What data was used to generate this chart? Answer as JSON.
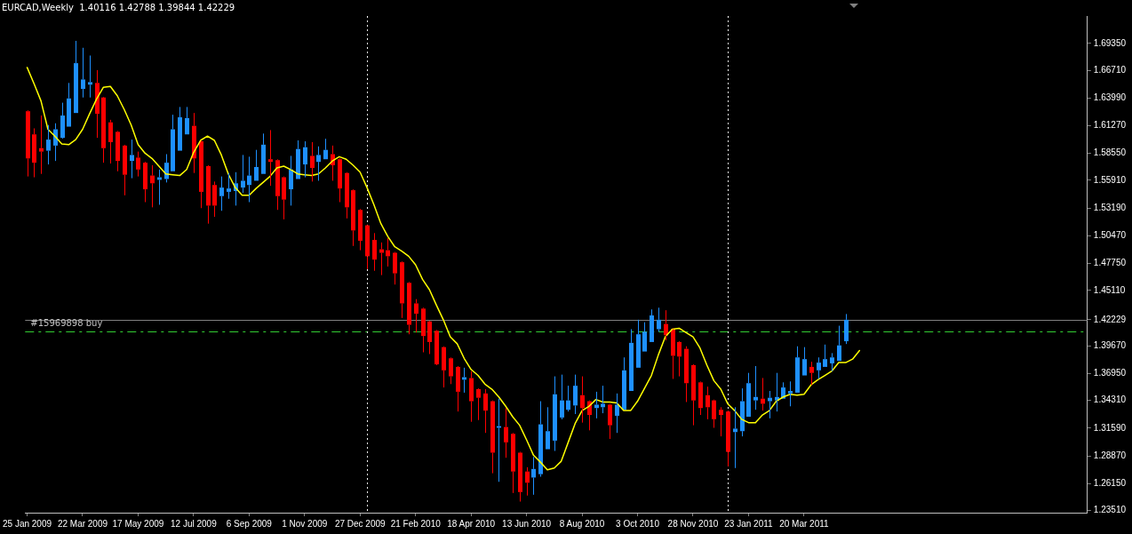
{
  "chart_data": {
    "type": "candlestick",
    "title": "EURCAD,Weekly  1.40116 1.42788 1.39844 1.42229",
    "x": [
      "2009-01-25",
      "2009-02-01",
      "2009-02-08",
      "2009-02-15",
      "2009-02-22",
      "2009-03-01",
      "2009-03-08",
      "2009-03-15",
      "2009-03-22",
      "2009-03-29",
      "2009-04-05",
      "2009-04-12",
      "2009-04-19",
      "2009-04-26",
      "2009-05-03",
      "2009-05-10",
      "2009-05-17",
      "2009-05-24",
      "2009-05-31",
      "2009-06-07",
      "2009-06-14",
      "2009-06-21",
      "2009-06-28",
      "2009-07-05",
      "2009-07-12",
      "2009-07-19",
      "2009-07-26",
      "2009-08-02",
      "2009-08-09",
      "2009-08-16",
      "2009-08-23",
      "2009-08-30",
      "2009-09-06",
      "2009-09-13",
      "2009-09-20",
      "2009-09-27",
      "2009-10-04",
      "2009-10-11",
      "2009-10-18",
      "2009-10-25",
      "2009-11-01",
      "2009-11-08",
      "2009-11-15",
      "2009-11-22",
      "2009-11-29",
      "2009-12-06",
      "2009-12-13",
      "2009-12-20",
      "2009-12-27",
      "2010-01-03",
      "2010-01-10",
      "2010-01-17",
      "2010-01-24",
      "2010-01-31",
      "2010-02-07",
      "2010-02-14",
      "2010-02-21",
      "2010-02-28",
      "2010-03-07",
      "2010-03-14",
      "2010-03-21",
      "2010-03-28",
      "2010-04-04",
      "2010-04-11",
      "2010-04-18",
      "2010-04-25",
      "2010-05-02",
      "2010-05-09",
      "2010-05-16",
      "2010-05-23",
      "2010-05-30",
      "2010-06-06",
      "2010-06-13",
      "2010-06-20",
      "2010-06-27",
      "2010-07-04",
      "2010-07-11",
      "2010-07-18",
      "2010-07-25",
      "2010-08-01",
      "2010-08-08",
      "2010-08-15",
      "2010-08-22",
      "2010-08-29",
      "2010-09-05",
      "2010-09-12",
      "2010-09-19",
      "2010-09-26",
      "2010-10-03",
      "2010-10-10",
      "2010-10-17",
      "2010-10-24",
      "2010-10-31",
      "2010-11-07",
      "2010-11-14",
      "2010-11-21",
      "2010-11-28",
      "2010-12-05",
      "2010-12-12",
      "2010-12-19",
      "2010-12-26",
      "2011-01-02",
      "2011-01-09",
      "2011-01-16",
      "2011-01-23",
      "2011-01-30",
      "2011-02-06",
      "2011-02-13",
      "2011-02-20",
      "2011-02-27",
      "2011-03-06",
      "2011-03-13",
      "2011-03-20",
      "2011-03-27",
      "2011-04-03",
      "2011-04-10",
      "2011-04-17",
      "2011-04-24",
      "2011-05-01"
    ],
    "ohlc": [
      [
        1.6269,
        1.6278,
        1.5629,
        1.5806
      ],
      [
        1.6042,
        1.6101,
        1.5621,
        1.5764
      ],
      [
        1.5907,
        1.6227,
        1.5654,
        1.5873
      ],
      [
        1.5882,
        1.6134,
        1.5747,
        1.5991
      ],
      [
        1.5932,
        1.6151,
        1.5781,
        1.6092
      ],
      [
        1.6008,
        1.6353,
        1.5999,
        1.6227
      ],
      [
        1.6118,
        1.6547,
        1.6118,
        1.6395
      ],
      [
        1.6252,
        1.696,
        1.6252,
        1.6741
      ],
      [
        1.6488,
        1.6892,
        1.6404,
        1.6581
      ],
      [
        1.653,
        1.6816,
        1.6404,
        1.6555
      ],
      [
        1.6547,
        1.6673,
        1.6008,
        1.6244
      ],
      [
        1.6404,
        1.641,
        1.5764,
        1.5907
      ],
      [
        1.616,
        1.6185,
        1.5756,
        1.5966
      ],
      [
        1.6067,
        1.6075,
        1.568,
        1.5781
      ],
      [
        1.5932,
        1.594,
        1.5444,
        1.5646
      ],
      [
        1.5781,
        1.5991,
        1.5612,
        1.584
      ],
      [
        1.5814,
        1.5873,
        1.5629,
        1.5697
      ],
      [
        1.5764,
        1.5772,
        1.5377,
        1.5503
      ],
      [
        1.5638,
        1.5739,
        1.5326,
        1.5562
      ],
      [
        1.5596,
        1.5697,
        1.5351,
        1.5621
      ],
      [
        1.5604,
        1.5848,
        1.557,
        1.5764
      ],
      [
        1.568,
        1.6235,
        1.568,
        1.6092
      ],
      [
        1.5882,
        1.6311,
        1.5882,
        1.621
      ],
      [
        1.6042,
        1.6311,
        1.6042,
        1.6202
      ],
      [
        1.6126,
        1.6252,
        1.5663,
        1.5806
      ],
      [
        1.5974,
        1.5982,
        1.5318,
        1.5478
      ],
      [
        1.573,
        1.5738,
        1.5166,
        1.5343
      ],
      [
        1.5545,
        1.5579,
        1.5233,
        1.5343
      ],
      [
        1.5436,
        1.5629,
        1.5292,
        1.552
      ],
      [
        1.5478,
        1.5663,
        1.541,
        1.5511
      ],
      [
        1.5486,
        1.5671,
        1.5343,
        1.5562
      ],
      [
        1.552,
        1.584,
        1.5469,
        1.5587
      ],
      [
        1.5545,
        1.5823,
        1.5377,
        1.5638
      ],
      [
        1.5587,
        1.589,
        1.5587,
        1.5722
      ],
      [
        1.5654,
        1.605,
        1.5654,
        1.5941
      ],
      [
        1.5798,
        1.6084,
        1.5537,
        1.5772
      ],
      [
        1.5789,
        1.5797,
        1.5301,
        1.5436
      ],
      [
        1.5621,
        1.5629,
        1.5208,
        1.5402
      ],
      [
        1.5503,
        1.5831,
        1.5343,
        1.5697
      ],
      [
        1.5604,
        1.5983,
        1.5604,
        1.5899
      ],
      [
        1.5747,
        1.5974,
        1.5621,
        1.5916
      ],
      [
        1.5831,
        1.5966,
        1.5579,
        1.5713
      ],
      [
        1.5772,
        1.5924,
        1.5587,
        1.584
      ],
      [
        1.5798,
        1.5999,
        1.5798,
        1.589
      ],
      [
        1.5848,
        1.5932,
        1.5587,
        1.5739
      ],
      [
        1.5798,
        1.5806,
        1.5377,
        1.5511
      ],
      [
        1.5663,
        1.5671,
        1.5217,
        1.5326
      ],
      [
        1.5494,
        1.5502,
        1.4947,
        1.5099
      ],
      [
        1.5301,
        1.5309,
        1.4905,
        1.4998
      ],
      [
        1.5149,
        1.5157,
        1.472,
        1.4846
      ],
      [
        1.5006,
        1.5073,
        1.4703,
        1.4813
      ],
      [
        1.4914,
        1.4981,
        1.4661,
        1.488
      ],
      [
        1.4905,
        1.5023,
        1.4745,
        1.4846
      ],
      [
        1.488,
        1.4888,
        1.4568,
        1.4678
      ],
      [
        1.4787,
        1.4795,
        1.424,
        1.4383
      ],
      [
        1.4585,
        1.4593,
        1.408,
        1.4173
      ],
      [
        1.4383,
        1.4425,
        1.4097,
        1.4282
      ],
      [
        1.4332,
        1.4341,
        1.3903,
        1.4063
      ],
      [
        1.4206,
        1.4214,
        1.3886,
        1.4004
      ],
      [
        1.4114,
        1.4122,
        1.3777,
        1.3785
      ],
      [
        1.3954,
        1.3962,
        1.3558,
        1.3726
      ],
      [
        1.3844,
        1.3852,
        1.3591,
        1.3667
      ],
      [
        1.376,
        1.3768,
        1.3322,
        1.3516
      ],
      [
        1.3634,
        1.3752,
        1.3507,
        1.3659
      ],
      [
        1.365,
        1.3718,
        1.3221,
        1.3423
      ],
      [
        1.3541,
        1.3549,
        1.3238,
        1.3457
      ],
      [
        1.3499,
        1.3541,
        1.3112,
        1.3331
      ],
      [
        1.3423,
        1.3431,
        1.2716,
        1.2918
      ],
      [
        1.3162,
        1.3448,
        1.2632,
        1.3179
      ],
      [
        1.317,
        1.3356,
        1.2868,
        1.3019
      ],
      [
        1.3103,
        1.3111,
        1.2522,
        1.2733
      ],
      [
        1.2918,
        1.2926,
        1.2438,
        1.2531
      ],
      [
        1.2733,
        1.2775,
        1.2497,
        1.2623
      ],
      [
        1.2674,
        1.2876,
        1.2505,
        1.2758
      ],
      [
        1.2707,
        1.3423,
        1.2682,
        1.3196
      ],
      [
        1.2952,
        1.3364,
        1.2952,
        1.3129
      ],
      [
        1.3036,
        1.3667,
        1.2935,
        1.3491
      ],
      [
        1.3263,
        1.3684,
        1.3246,
        1.3431
      ],
      [
        1.3339,
        1.3575,
        1.3322,
        1.3431
      ],
      [
        1.3381,
        1.3684,
        1.3297,
        1.3575
      ],
      [
        1.3482,
        1.3667,
        1.3213,
        1.3356
      ],
      [
        1.3423,
        1.3431,
        1.3137,
        1.3288
      ],
      [
        1.3356,
        1.3516,
        1.3255,
        1.3389
      ],
      [
        1.3364,
        1.3575,
        1.3305,
        1.3398
      ],
      [
        1.3389,
        1.3397,
        1.3053,
        1.3187
      ],
      [
        1.328,
        1.3499,
        1.3112,
        1.3389
      ],
      [
        1.3339,
        1.3853,
        1.3339,
        1.3726
      ],
      [
        1.3524,
        1.413,
        1.3524,
        1.3996
      ],
      [
        1.3752,
        1.4223,
        1.3752,
        1.408
      ],
      [
        1.3911,
        1.4198,
        1.3911,
        1.4105
      ],
      [
        1.4004,
        1.4324,
        1.4004,
        1.4265
      ],
      [
        1.413,
        1.4341,
        1.4105,
        1.4223
      ],
      [
        1.4181,
        1.4316,
        1.4021,
        1.4071
      ],
      [
        1.413,
        1.4138,
        1.3642,
        1.3869
      ],
      [
        1.4004,
        1.4012,
        1.3667,
        1.3861
      ],
      [
        1.3937,
        1.3962,
        1.3415,
        1.36
      ],
      [
        1.3777,
        1.3785,
        1.3187,
        1.3431
      ],
      [
        1.3608,
        1.3616,
        1.3288,
        1.3356
      ],
      [
        1.3482,
        1.3566,
        1.3246,
        1.3364
      ],
      [
        1.3431,
        1.3439,
        1.3162,
        1.3246
      ],
      [
        1.3339,
        1.3364,
        1.3078,
        1.3288
      ],
      [
        1.3322,
        1.333,
        1.2783,
        1.2926
      ],
      [
        1.312,
        1.3364,
        1.2767,
        1.3154
      ],
      [
        1.3129,
        1.3549,
        1.3078,
        1.3423
      ],
      [
        1.3271,
        1.3701,
        1.3271,
        1.36
      ],
      [
        1.3431,
        1.3768,
        1.3339,
        1.3465
      ],
      [
        1.3448,
        1.3651,
        1.3331,
        1.3398
      ],
      [
        1.3423,
        1.3524,
        1.3255,
        1.3457
      ],
      [
        1.3431,
        1.3701,
        1.3322,
        1.3465
      ],
      [
        1.3448,
        1.3608,
        1.3448,
        1.3558
      ],
      [
        1.3499,
        1.3617,
        1.3373,
        1.3524
      ],
      [
        1.3507,
        1.3962,
        1.3507,
        1.3853
      ],
      [
        1.3676,
        1.3954,
        1.3676,
        1.3836
      ],
      [
        1.376,
        1.381,
        1.3583,
        1.3701
      ],
      [
        1.3726,
        1.3853,
        1.3642,
        1.3802
      ],
      [
        1.376,
        1.3979,
        1.376,
        1.3836
      ],
      [
        1.3794,
        1.3895,
        1.3718,
        1.3853
      ],
      [
        1.3819,
        1.4164,
        1.3819,
        1.3971
      ],
      [
        1.40116,
        1.42788,
        1.39844,
        1.42229
      ]
    ],
    "colors": [
      "#ff0000",
      "#ff0000",
      "#ff0000",
      "#1e90ff",
      "#1e90ff",
      "#1e90ff",
      "#1e90ff",
      "#1e90ff",
      "#1e90ff",
      "#1e90ff",
      "#ff0000",
      "#ff0000",
      "#ff0000",
      "#ff0000",
      "#ff0000",
      "#1e90ff",
      "#ff0000",
      "#ff0000",
      "#ff0000",
      "#1e90ff",
      "#1e90ff",
      "#1e90ff",
      "#1e90ff",
      "#1e90ff",
      "#ff0000",
      "#ff0000",
      "#ff0000",
      "#ff0000",
      "#1e90ff",
      "#1e90ff",
      "#1e90ff",
      "#1e90ff",
      "#1e90ff",
      "#1e90ff",
      "#1e90ff",
      "#ff0000",
      "#ff0000",
      "#ff0000",
      "#1e90ff",
      "#1e90ff",
      "#1e90ff",
      "#ff0000",
      "#1e90ff",
      "#1e90ff",
      "#ff0000",
      "#ff0000",
      "#ff0000",
      "#ff0000",
      "#ff0000",
      "#ff0000",
      "#ff0000",
      "#ff0000",
      "#ff0000",
      "#ff0000",
      "#ff0000",
      "#ff0000",
      "#ff0000",
      "#ff0000",
      "#ff0000",
      "#ff0000",
      "#ff0000",
      "#ff0000",
      "#ff0000",
      "#1e90ff",
      "#ff0000",
      "#ff0000",
      "#ff0000",
      "#ff0000",
      "#1e90ff",
      "#ff0000",
      "#ff0000",
      "#ff0000",
      "#ff0000",
      "#1e90ff",
      "#1e90ff",
      "#1e90ff",
      "#1e90ff",
      "#1e90ff",
      "#1e90ff",
      "#1e90ff",
      "#ff0000",
      "#ff0000",
      "#1e90ff",
      "#1e90ff",
      "#ff0000",
      "#1e90ff",
      "#1e90ff",
      "#1e90ff",
      "#1e90ff",
      "#1e90ff",
      "#1e90ff",
      "#1e90ff",
      "#ff0000",
      "#ff0000",
      "#ff0000",
      "#ff0000",
      "#ff0000",
      "#ff0000",
      "#ff0000",
      "#ff0000",
      "#ff0000",
      "#ff0000",
      "#1e90ff",
      "#1e90ff",
      "#1e90ff",
      "#1e90ff",
      "#ff0000",
      "#1e90ff",
      "#1e90ff",
      "#1e90ff",
      "#1e90ff",
      "#1e90ff",
      "#1e90ff",
      "#ff0000",
      "#1e90ff",
      "#1e90ff",
      "#1e90ff",
      "#1e90ff",
      "#1e90ff"
    ],
    "series": [
      {
        "type": "line",
        "color": "#ffff00",
        "x": [
          "2009-01-25",
          "2009-02-01",
          "2009-02-08",
          "2009-02-15",
          "2009-02-22",
          "2009-03-01",
          "2009-03-08",
          "2009-03-15",
          "2009-03-22",
          "2009-03-29",
          "2009-04-05",
          "2009-04-12",
          "2009-04-19",
          "2009-04-26",
          "2009-05-03",
          "2009-05-10",
          "2009-05-17",
          "2009-05-24",
          "2009-05-31",
          "2009-06-07",
          "2009-06-14",
          "2009-06-21",
          "2009-06-28",
          "2009-07-05",
          "2009-07-12",
          "2009-07-19",
          "2009-07-26",
          "2009-08-02",
          "2009-08-09",
          "2009-08-16",
          "2009-08-23",
          "2009-08-30",
          "2009-09-06",
          "2009-09-13",
          "2009-09-20",
          "2009-09-27",
          "2009-10-04",
          "2009-10-11",
          "2009-10-18",
          "2009-10-25",
          "2009-11-01",
          "2009-11-08",
          "2009-11-15",
          "2009-11-22",
          "2009-11-29",
          "2009-12-06",
          "2009-12-13",
          "2009-12-20",
          "2009-12-27",
          "2010-01-03",
          "2010-01-10",
          "2010-01-17",
          "2010-01-24",
          "2010-01-31",
          "2010-02-07",
          "2010-02-14",
          "2010-02-21",
          "2010-02-28",
          "2010-03-07",
          "2010-03-14",
          "2010-03-21",
          "2010-03-28",
          "2010-04-04",
          "2010-04-11",
          "2010-04-18",
          "2010-04-25",
          "2010-05-02",
          "2010-05-09",
          "2010-05-16",
          "2010-05-23",
          "2010-05-30",
          "2010-06-06",
          "2010-06-13",
          "2010-06-20",
          "2010-06-27",
          "2010-07-04",
          "2010-07-11",
          "2010-07-18",
          "2010-07-25",
          "2010-08-01",
          "2010-08-08",
          "2010-08-15",
          "2010-08-22",
          "2010-08-29",
          "2010-09-05",
          "2010-09-12",
          "2010-09-19",
          "2010-09-26",
          "2010-10-03",
          "2010-10-10",
          "2010-10-17",
          "2010-10-24",
          "2010-10-31",
          "2010-11-07",
          "2010-11-14",
          "2010-11-21",
          "2010-11-28",
          "2010-12-05",
          "2010-12-12",
          "2010-12-19",
          "2010-12-26",
          "2011-01-02",
          "2011-01-09",
          "2011-01-16",
          "2011-01-23",
          "2011-01-30",
          "2011-02-06",
          "2011-02-13",
          "2011-02-20",
          "2011-02-27",
          "2011-03-06",
          "2011-03-13",
          "2011-03-20",
          "2011-03-27",
          "2011-04-03",
          "2011-04-10",
          "2011-04-17",
          "2011-04-24",
          "2011-05-01",
          "2011-05-08",
          "2011-05-15"
        ],
        "values": [
          1.6699,
          1.6539,
          1.637,
          1.6092,
          1.6025,
          1.5949,
          1.5941,
          1.5991,
          1.6092,
          1.6244,
          1.6387,
          1.6505,
          1.6513,
          1.6421,
          1.6286,
          1.6134,
          1.5941,
          1.5857,
          1.5806,
          1.573,
          1.5654,
          1.5646,
          1.5638,
          1.5697,
          1.5865,
          1.5983,
          1.6025,
          1.5983,
          1.584,
          1.5654,
          1.552,
          1.5444,
          1.5444,
          1.5511,
          1.557,
          1.5629,
          1.5713,
          1.573,
          1.5697,
          1.5654,
          1.5646,
          1.5638,
          1.5654,
          1.5713,
          1.5781,
          1.5823,
          1.5798,
          1.5739,
          1.5671,
          1.552,
          1.5351,
          1.5166,
          1.504,
          1.4939,
          1.4897,
          1.4846,
          1.4762,
          1.4619,
          1.4518,
          1.4366,
          1.4223,
          1.4055,
          1.3987,
          1.3844,
          1.3735,
          1.3676,
          1.3591,
          1.3541,
          1.3465,
          1.3373,
          1.3271,
          1.3187,
          1.3044,
          1.2893,
          1.2825,
          1.275,
          1.2767,
          1.2834,
          1.3019,
          1.3204,
          1.3331,
          1.3373,
          1.344,
          1.3415,
          1.3415,
          1.3406,
          1.3331,
          1.3331,
          1.3423,
          1.3549,
          1.3676,
          1.3878,
          1.4055,
          1.413,
          1.4139,
          1.4097,
          1.4055,
          1.3945,
          1.3777,
          1.3625,
          1.3541,
          1.3398,
          1.3331,
          1.3246,
          1.3213,
          1.3213,
          1.3288,
          1.3331,
          1.3423,
          1.3465,
          1.3491,
          1.3482,
          1.3491,
          1.3583,
          1.3634,
          1.3676,
          1.3718,
          1.3802,
          1.3802,
          1.3836,
          1.392
        ]
      }
    ],
    "xlim": [
      "2009-01-23",
      "2011-12-31"
    ],
    "xticks": [
      {
        "value": "2009-01-25",
        "label": "25 Jan 2009"
      },
      {
        "value": "2009-03-22",
        "label": "22 Mar 2009"
      },
      {
        "value": "2009-05-17",
        "label": "17 May 2009"
      },
      {
        "value": "2009-07-12",
        "label": "12 Jul 2009"
      },
      {
        "value": "2009-09-06",
        "label": "6 Sep 2009"
      },
      {
        "value": "2009-11-01",
        "label": "1 Nov 2009"
      },
      {
        "value": "2009-12-27",
        "label": "27 Dec 2009"
      },
      {
        "value": "2010-02-21",
        "label": "21 Feb 2010"
      },
      {
        "value": "2010-04-18",
        "label": "18 Apr 2010"
      },
      {
        "value": "2010-06-13",
        "label": "13 Jun 2010"
      },
      {
        "value": "2010-08-08",
        "label": "8 Aug 2010"
      },
      {
        "value": "2010-10-03",
        "label": "3 Oct 2010"
      },
      {
        "value": "2010-11-28",
        "label": "28 Nov 2010"
      },
      {
        "value": "2011-01-23",
        "label": "23 Jan 2011"
      },
      {
        "value": "2011-03-20",
        "label": "20 Mar 2011"
      }
    ],
    "ylim": [
      1.2329,
      1.7204
    ],
    "yticks": [
      {
        "value": 1.6935,
        "label": "1.69350"
      },
      {
        "value": 1.6671,
        "label": "1.66710"
      },
      {
        "value": 1.6399,
        "label": "1.63990"
      },
      {
        "value": 1.6127,
        "label": "1.61270"
      },
      {
        "value": 1.5855,
        "label": "1.58550"
      },
      {
        "value": 1.5591,
        "label": "1.55910"
      },
      {
        "value": 1.5319,
        "label": "1.53190"
      },
      {
        "value": 1.5047,
        "label": "1.50470"
      },
      {
        "value": 1.4775,
        "label": "1.47750"
      },
      {
        "value": 1.4511,
        "label": "1.45110"
      },
      {
        "value": 1.42229,
        "label": "1.42229"
      },
      {
        "value": 1.3967,
        "label": "1.39670"
      },
      {
        "value": 1.3695,
        "label": "1.36950"
      },
      {
        "value": 1.3431,
        "label": "1.34310"
      },
      {
        "value": 1.3159,
        "label": "1.31590"
      },
      {
        "value": 1.2887,
        "label": "1.28870"
      },
      {
        "value": 1.2615,
        "label": "1.26150"
      },
      {
        "value": 1.2351,
        "label": "1.23510"
      }
    ],
    "ref_lines": [
      {
        "axis": "y",
        "value": 1.42229,
        "color": "#808080",
        "line_style": "solid"
      },
      {
        "axis": "y",
        "value": 1.4112,
        "label": "#15969898 buy",
        "color": "#32cd32",
        "line_style": "dashed"
      },
      {
        "axis": "x",
        "value": "2010-01-03",
        "color": "#ffffff",
        "line_style": "dotted"
      },
      {
        "axis": "x",
        "value": "2011-01-02",
        "color": "#ffffff",
        "line_style": "dotted"
      }
    ]
  }
}
